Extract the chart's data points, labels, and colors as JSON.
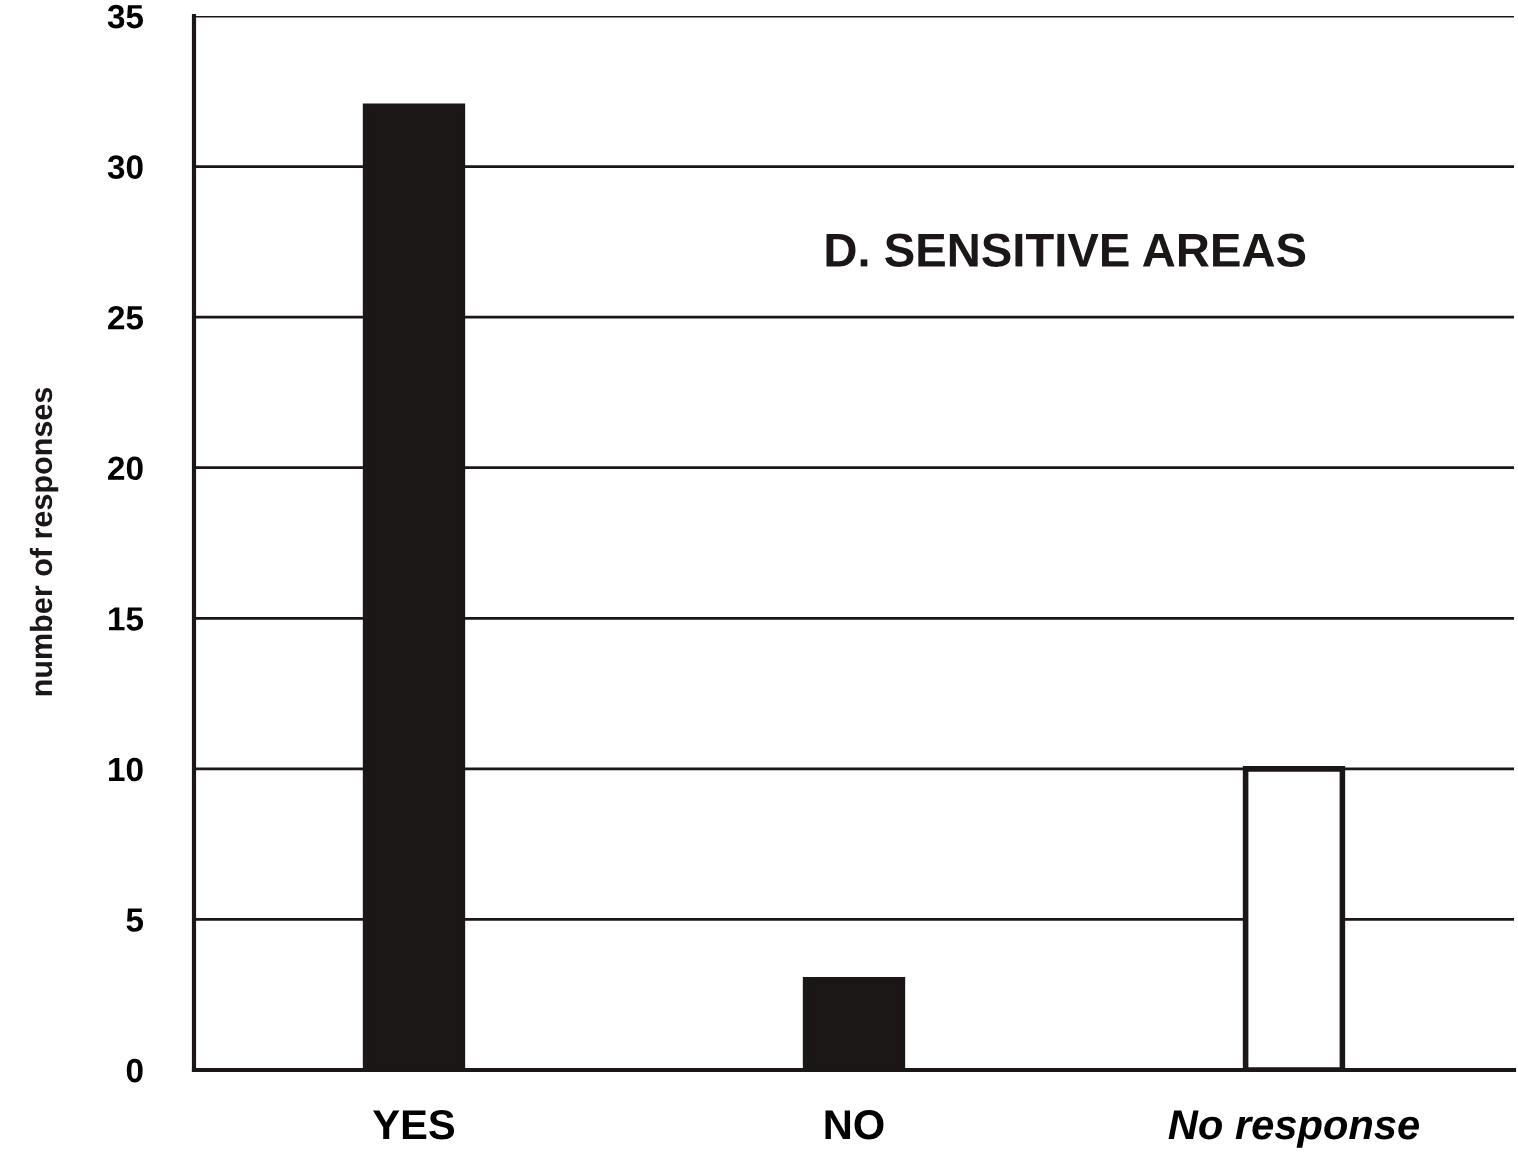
{
  "chart_data": {
    "type": "bar",
    "title": "D. SENSITIVE AREAS",
    "ylabel": "number of responses",
    "categories": [
      "YES",
      "NO",
      "No response"
    ],
    "values": [
      32,
      3,
      10
    ],
    "colors": [
      "#1a1716",
      "#1a1716",
      "#ffffff"
    ],
    "ylim": [
      0,
      35
    ],
    "yticks": [
      0,
      5,
      10,
      15,
      20,
      25,
      30,
      35
    ],
    "grid": "y"
  }
}
